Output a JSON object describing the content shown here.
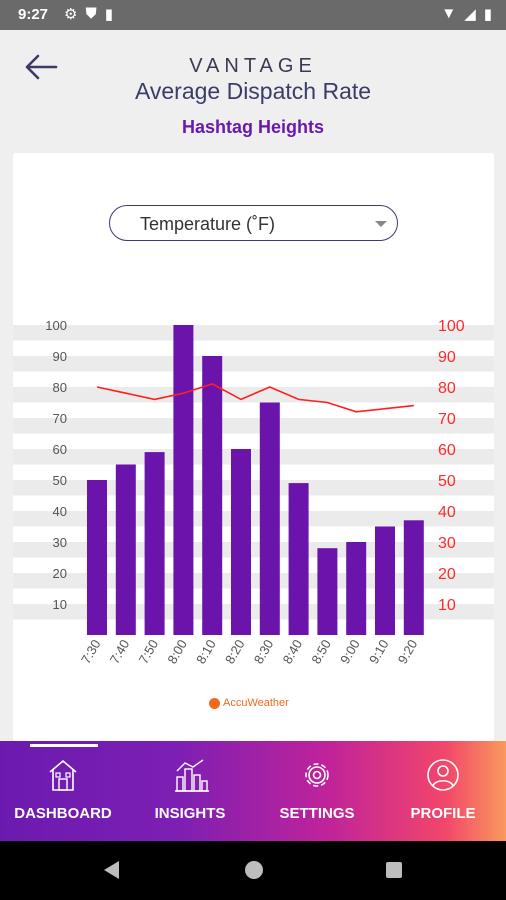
{
  "status_bar": {
    "time": "9:27"
  },
  "header": {
    "brand": "VANTAGE",
    "title": "Average Dispatch Rate",
    "subtitle": "Hashtag Heights"
  },
  "metric_select": {
    "value": "Temperature (˚F)"
  },
  "attribution": "AccuWeather",
  "chart_data": {
    "type": "bar",
    "categories": [
      "7:30",
      "7:40",
      "7:50",
      "8:00",
      "8:10",
      "8:20",
      "8:30",
      "8:40",
      "8:50",
      "9:00",
      "9:10",
      "9:20"
    ],
    "series": [
      {
        "values": [
          50,
          55,
          59,
          100,
          90,
          60,
          75,
          49,
          28,
          30,
          35,
          37
        ],
        "color": "#6a14ac",
        "type": "bar"
      },
      {
        "values": [
          80,
          78,
          76,
          78,
          81,
          76,
          80,
          76,
          75,
          72,
          73,
          74
        ],
        "color": "#ff1f1f",
        "type": "line"
      }
    ],
    "y_ticks_left": [
      "10",
      "20",
      "30",
      "40",
      "50",
      "60",
      "70",
      "80",
      "90",
      "100"
    ],
    "y_ticks_right": [
      "10",
      "20",
      "30",
      "40",
      "50",
      "60",
      "70",
      "80",
      "90",
      "100"
    ],
    "ylim": [
      0,
      100
    ],
    "grid": true
  },
  "bottom_nav": {
    "items": [
      {
        "label": "DASHBOARD",
        "icon": "house-icon",
        "active": true
      },
      {
        "label": "INSIGHTS",
        "icon": "city-chart-icon",
        "active": false
      },
      {
        "label": "SETTINGS",
        "icon": "gear-icon",
        "active": false
      },
      {
        "label": "PROFILE",
        "icon": "user-icon",
        "active": false
      }
    ]
  }
}
